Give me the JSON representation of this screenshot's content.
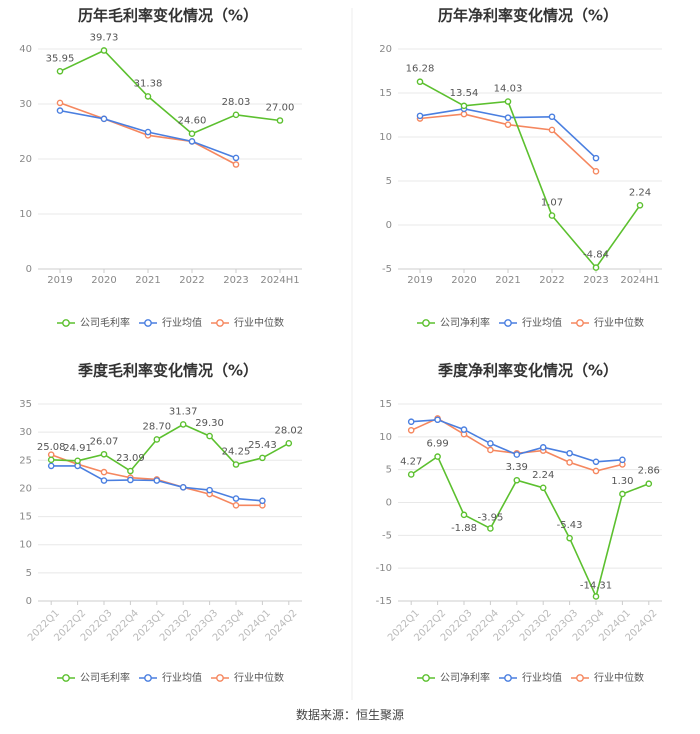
{
  "colors": {
    "company": "#5cc02f",
    "industry_avg": "#4a7fe0",
    "industry_median": "#f5875f",
    "grid": "#e8e8e8",
    "axis_text": "#888888",
    "title": "#333333",
    "label": "#555555"
  },
  "legend_labels": {
    "company_gross": "公司毛利率",
    "company_net": "公司净利率",
    "industry_avg": "行业均值",
    "industry_median": "行业中位数"
  },
  "source": "数据来源：恒生聚源",
  "chart_data": [
    {
      "type": "line",
      "title": "历年毛利率变化情况（%）",
      "categories": [
        "2019",
        "2020",
        "2021",
        "2022",
        "2023",
        "2024H1"
      ],
      "y_ticks": [
        0,
        10,
        20,
        30,
        40
      ],
      "ylim": [
        0,
        40
      ],
      "series": [
        {
          "name": "公司毛利率",
          "key": "company",
          "values": [
            35.95,
            39.73,
            31.38,
            24.6,
            28.03,
            27.0
          ],
          "labels": [
            "35.95",
            "39.73",
            "31.38",
            "24.60",
            "28.03",
            "27.00"
          ]
        },
        {
          "name": "行业均值",
          "key": "industry_avg",
          "values": [
            28.8,
            27.3,
            24.9,
            23.2,
            20.2,
            null
          ]
        },
        {
          "name": "行业中位数",
          "key": "industry_median",
          "values": [
            30.2,
            27.3,
            24.3,
            23.2,
            19.0,
            null
          ]
        }
      ]
    },
    {
      "type": "line",
      "title": "历年净利率变化情况（%）",
      "categories": [
        "2019",
        "2020",
        "2021",
        "2022",
        "2023",
        "2024H1"
      ],
      "y_ticks": [
        -5,
        0,
        5,
        10,
        15,
        20
      ],
      "ylim": [
        -5,
        20
      ],
      "series": [
        {
          "name": "公司净利率",
          "key": "company",
          "values": [
            16.28,
            13.54,
            14.03,
            1.07,
            -4.84,
            2.24
          ],
          "labels": [
            "16.28",
            "13.54",
            "14.03",
            "1.07",
            "-4.84",
            "2.24"
          ]
        },
        {
          "name": "行业均值",
          "key": "industry_avg",
          "values": [
            12.4,
            13.2,
            12.2,
            12.3,
            7.6,
            null
          ]
        },
        {
          "name": "行业中位数",
          "key": "industry_median",
          "values": [
            12.1,
            12.6,
            11.4,
            10.8,
            6.1,
            null
          ]
        }
      ]
    },
    {
      "type": "line",
      "title": "季度毛利率变化情况（%）",
      "categories": [
        "2022Q1",
        "2022Q2",
        "2022Q3",
        "2022Q4",
        "2023Q1",
        "2023Q2",
        "2023Q3",
        "2023Q4",
        "2024Q1",
        "2024Q2"
      ],
      "y_ticks": [
        0,
        5,
        10,
        15,
        20,
        25,
        30,
        35
      ],
      "ylim": [
        0,
        35
      ],
      "series": [
        {
          "name": "公司毛利率",
          "key": "company",
          "values": [
            25.08,
            24.91,
            26.07,
            23.09,
            28.7,
            31.37,
            29.3,
            24.25,
            25.43,
            28.02
          ],
          "labels": [
            "25.08",
            "24.91",
            "26.07",
            "23.09",
            "28.70",
            "31.37",
            "29.30",
            "24.25",
            "25.43",
            "28.02"
          ]
        },
        {
          "name": "行业均值",
          "key": "industry_avg",
          "values": [
            24.0,
            24.0,
            21.4,
            21.5,
            21.4,
            20.2,
            19.7,
            18.2,
            17.8,
            null
          ]
        },
        {
          "name": "行业中位数",
          "key": "industry_median",
          "values": [
            26.0,
            24.3,
            22.9,
            21.9,
            21.6,
            20.2,
            19.0,
            17.0,
            17.0,
            null
          ]
        }
      ]
    },
    {
      "type": "line",
      "title": "季度净利率变化情况（%）",
      "categories": [
        "2022Q1",
        "2022Q2",
        "2022Q3",
        "2022Q4",
        "2023Q1",
        "2023Q2",
        "2023Q3",
        "2023Q4",
        "2024Q1",
        "2024Q2"
      ],
      "y_ticks": [
        -15,
        -10,
        -5,
        0,
        5,
        10,
        15
      ],
      "ylim": [
        -15,
        15
      ],
      "series": [
        {
          "name": "公司净利率",
          "key": "company",
          "values": [
            4.27,
            6.99,
            -1.88,
            -3.95,
            3.39,
            2.24,
            -5.43,
            -14.31,
            1.3,
            2.86
          ],
          "labels": [
            "4.27",
            "6.99",
            "-1.88",
            "-3.95",
            "3.39",
            "2.24",
            "-5.43",
            "-14.31",
            "1.30",
            "2.86"
          ]
        },
        {
          "name": "行业均值",
          "key": "industry_avg",
          "values": [
            12.3,
            12.6,
            11.1,
            9.0,
            7.3,
            8.4,
            7.5,
            6.2,
            6.5,
            null
          ]
        },
        {
          "name": "行业中位数",
          "key": "industry_median",
          "values": [
            11.0,
            12.8,
            10.4,
            8.0,
            7.5,
            7.9,
            6.1,
            4.8,
            5.8,
            null
          ]
        }
      ]
    }
  ]
}
